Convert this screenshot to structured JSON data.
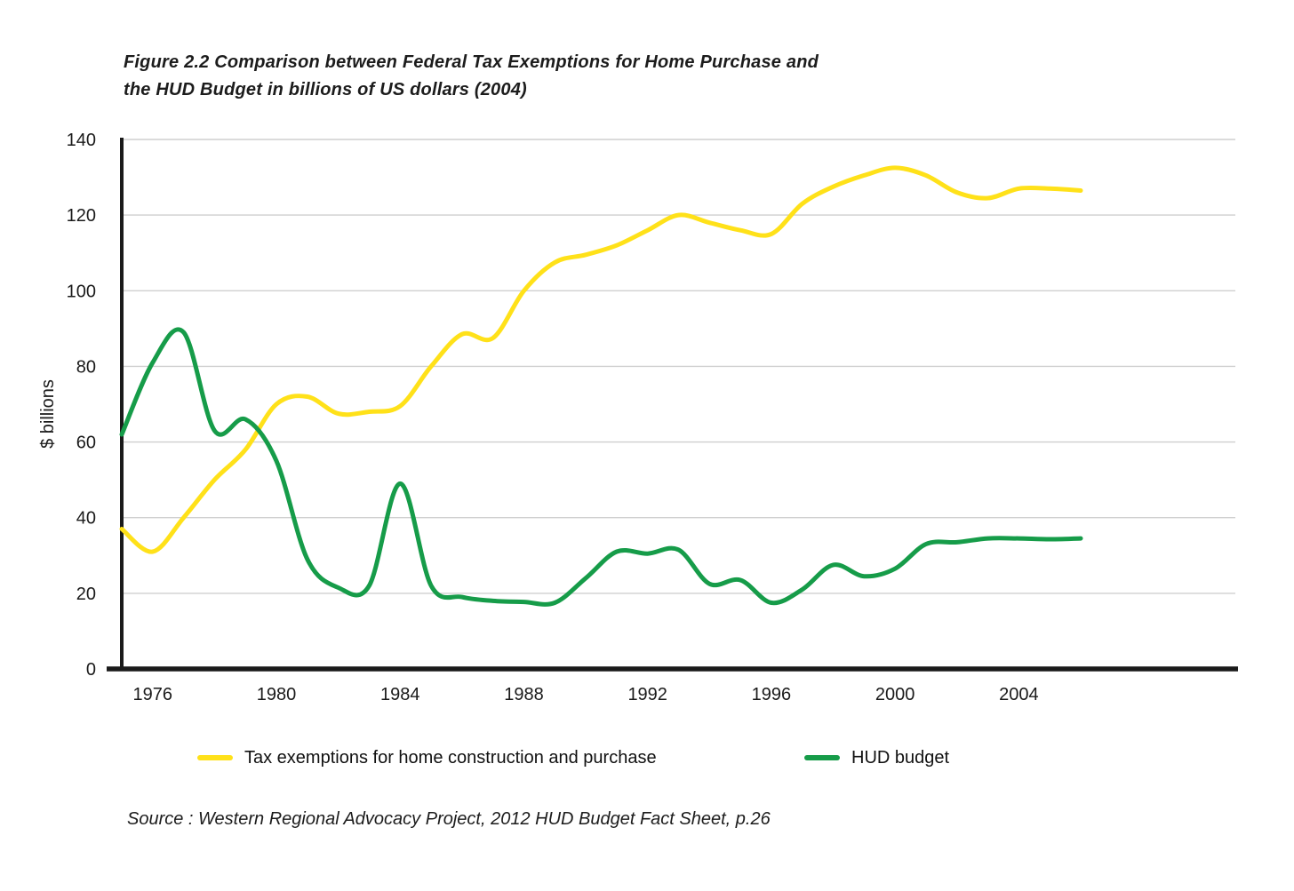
{
  "figure": {
    "title_line1": "Figure 2.2 Comparison between Federal Tax Exemptions for Home Purchase and",
    "title_line2": "the HUD Budget in billions of US dollars (2004)",
    "source": "Source : Western Regional Advocacy Project, 2012 HUD Budget Fact Sheet, p.26"
  },
  "colors": {
    "background": "#FFFFFF",
    "grid": "#CFCFCF",
    "axis": "#1A1A1A",
    "text": "#1A1A1A",
    "tax_line": "#FFE119",
    "hud_line": "#169C49"
  },
  "chart_data": {
    "type": "line",
    "title": "Figure 2.2 Comparison between Federal Tax Exemptions for Home Purchase and the HUD Budget in billions of US dollars (2004)",
    "xlabel": "",
    "ylabel": "$ billions",
    "x": [
      1975,
      1976,
      1977,
      1978,
      1979,
      1980,
      1981,
      1982,
      1983,
      1984,
      1985,
      1986,
      1987,
      1988,
      1989,
      1990,
      1991,
      1992,
      1993,
      1994,
      1995,
      1996,
      1997,
      1998,
      1999,
      2000,
      2001,
      2002,
      2003,
      2004,
      2005,
      2006
    ],
    "series": [
      {
        "name": "Tax exemptions for home construction and purchase",
        "color": "#FFE119",
        "values": [
          37,
          31,
          40,
          50,
          58,
          70,
          72,
          67.5,
          68,
          69.5,
          80,
          88.5,
          87.5,
          100,
          107.5,
          109.5,
          112,
          116,
          120,
          118,
          116,
          115,
          123,
          127.5,
          130.5,
          132.5,
          130.5,
          126,
          124.5,
          127,
          127,
          126.5
        ]
      },
      {
        "name": "HUD budget",
        "color": "#169C49",
        "values": [
          62,
          81,
          89,
          63,
          66,
          55,
          29,
          21.5,
          22,
          49,
          22,
          19,
          18,
          17.7,
          17.5,
          24,
          31,
          30.5,
          31.5,
          22.5,
          23.5,
          17.5,
          21,
          27.5,
          24.5,
          26.5,
          33,
          33.5,
          34.5,
          34.5,
          34.3,
          34.5
        ]
      }
    ],
    "x_ticks": [
      1976,
      1980,
      1984,
      1988,
      1992,
      1996,
      2000,
      2004
    ],
    "y_ticks": [
      0,
      20,
      40,
      60,
      80,
      100,
      120,
      140
    ],
    "xlim": [
      1975,
      2011
    ],
    "ylim": [
      0,
      140
    ],
    "grid": "horizontal-light-gray",
    "legend_position": "bottom",
    "smoothed": true
  }
}
